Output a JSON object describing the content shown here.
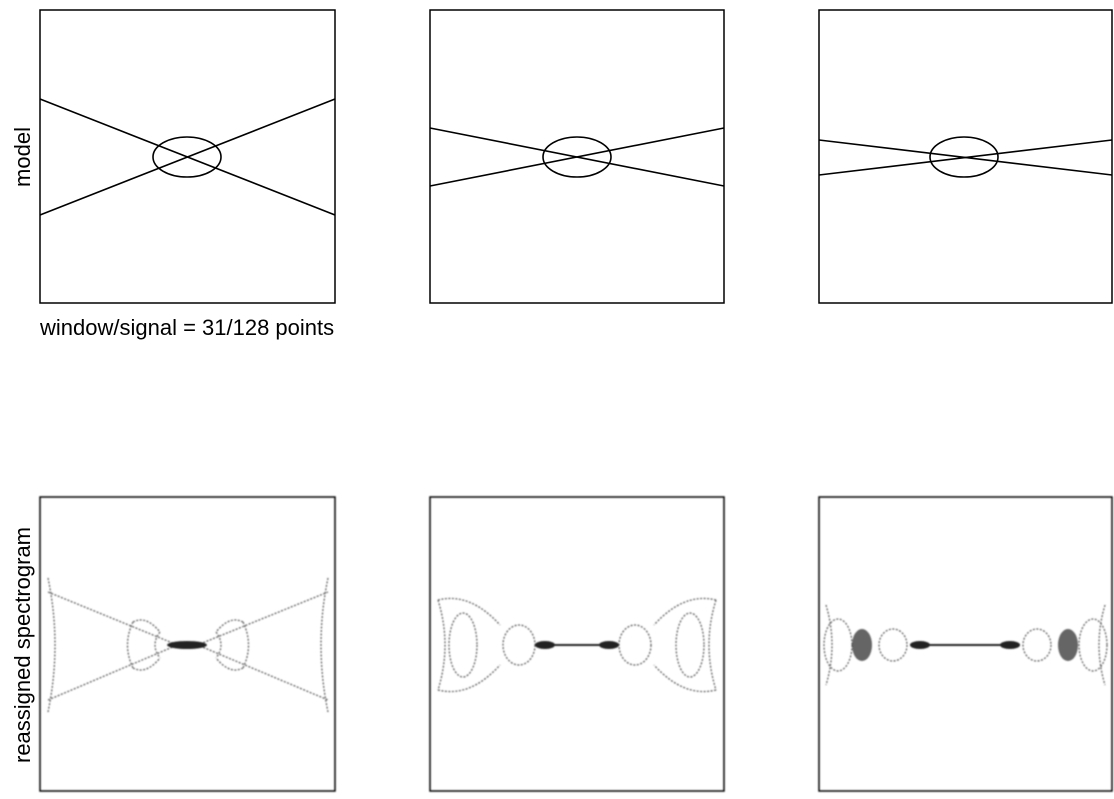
{
  "labels": {
    "top_row": "model",
    "caption": "window/signal = 31/128 points",
    "bottom_row": "reassigned spectrogram"
  }
}
